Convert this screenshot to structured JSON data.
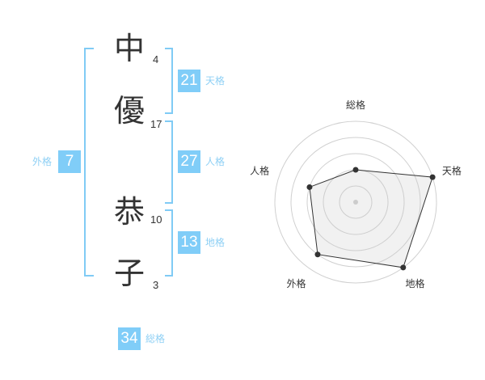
{
  "name": {
    "chars": [
      {
        "char": "中",
        "strokes": "4"
      },
      {
        "char": "優",
        "strokes": "17"
      },
      {
        "char": "恭",
        "strokes": "10"
      },
      {
        "char": "子",
        "strokes": "3"
      }
    ]
  },
  "fortunes": {
    "tenkaku": {
      "label": "天格",
      "value": "21"
    },
    "jinkaku": {
      "label": "人格",
      "value": "27"
    },
    "chikaku": {
      "label": "地格",
      "value": "13"
    },
    "gaikaku": {
      "label": "外格",
      "value": "7"
    },
    "soukaku": {
      "label": "総格",
      "value": "34"
    }
  },
  "colors": {
    "accent": "#80cdf8",
    "bracket": "#80cbf5",
    "text": "#333333"
  },
  "chart_data": {
    "type": "radar",
    "axes": [
      "総格",
      "天格",
      "地格",
      "外格",
      "人格"
    ],
    "values": [
      2,
      5,
      5,
      4,
      3
    ],
    "range": [
      0,
      5
    ],
    "rings": 5
  }
}
